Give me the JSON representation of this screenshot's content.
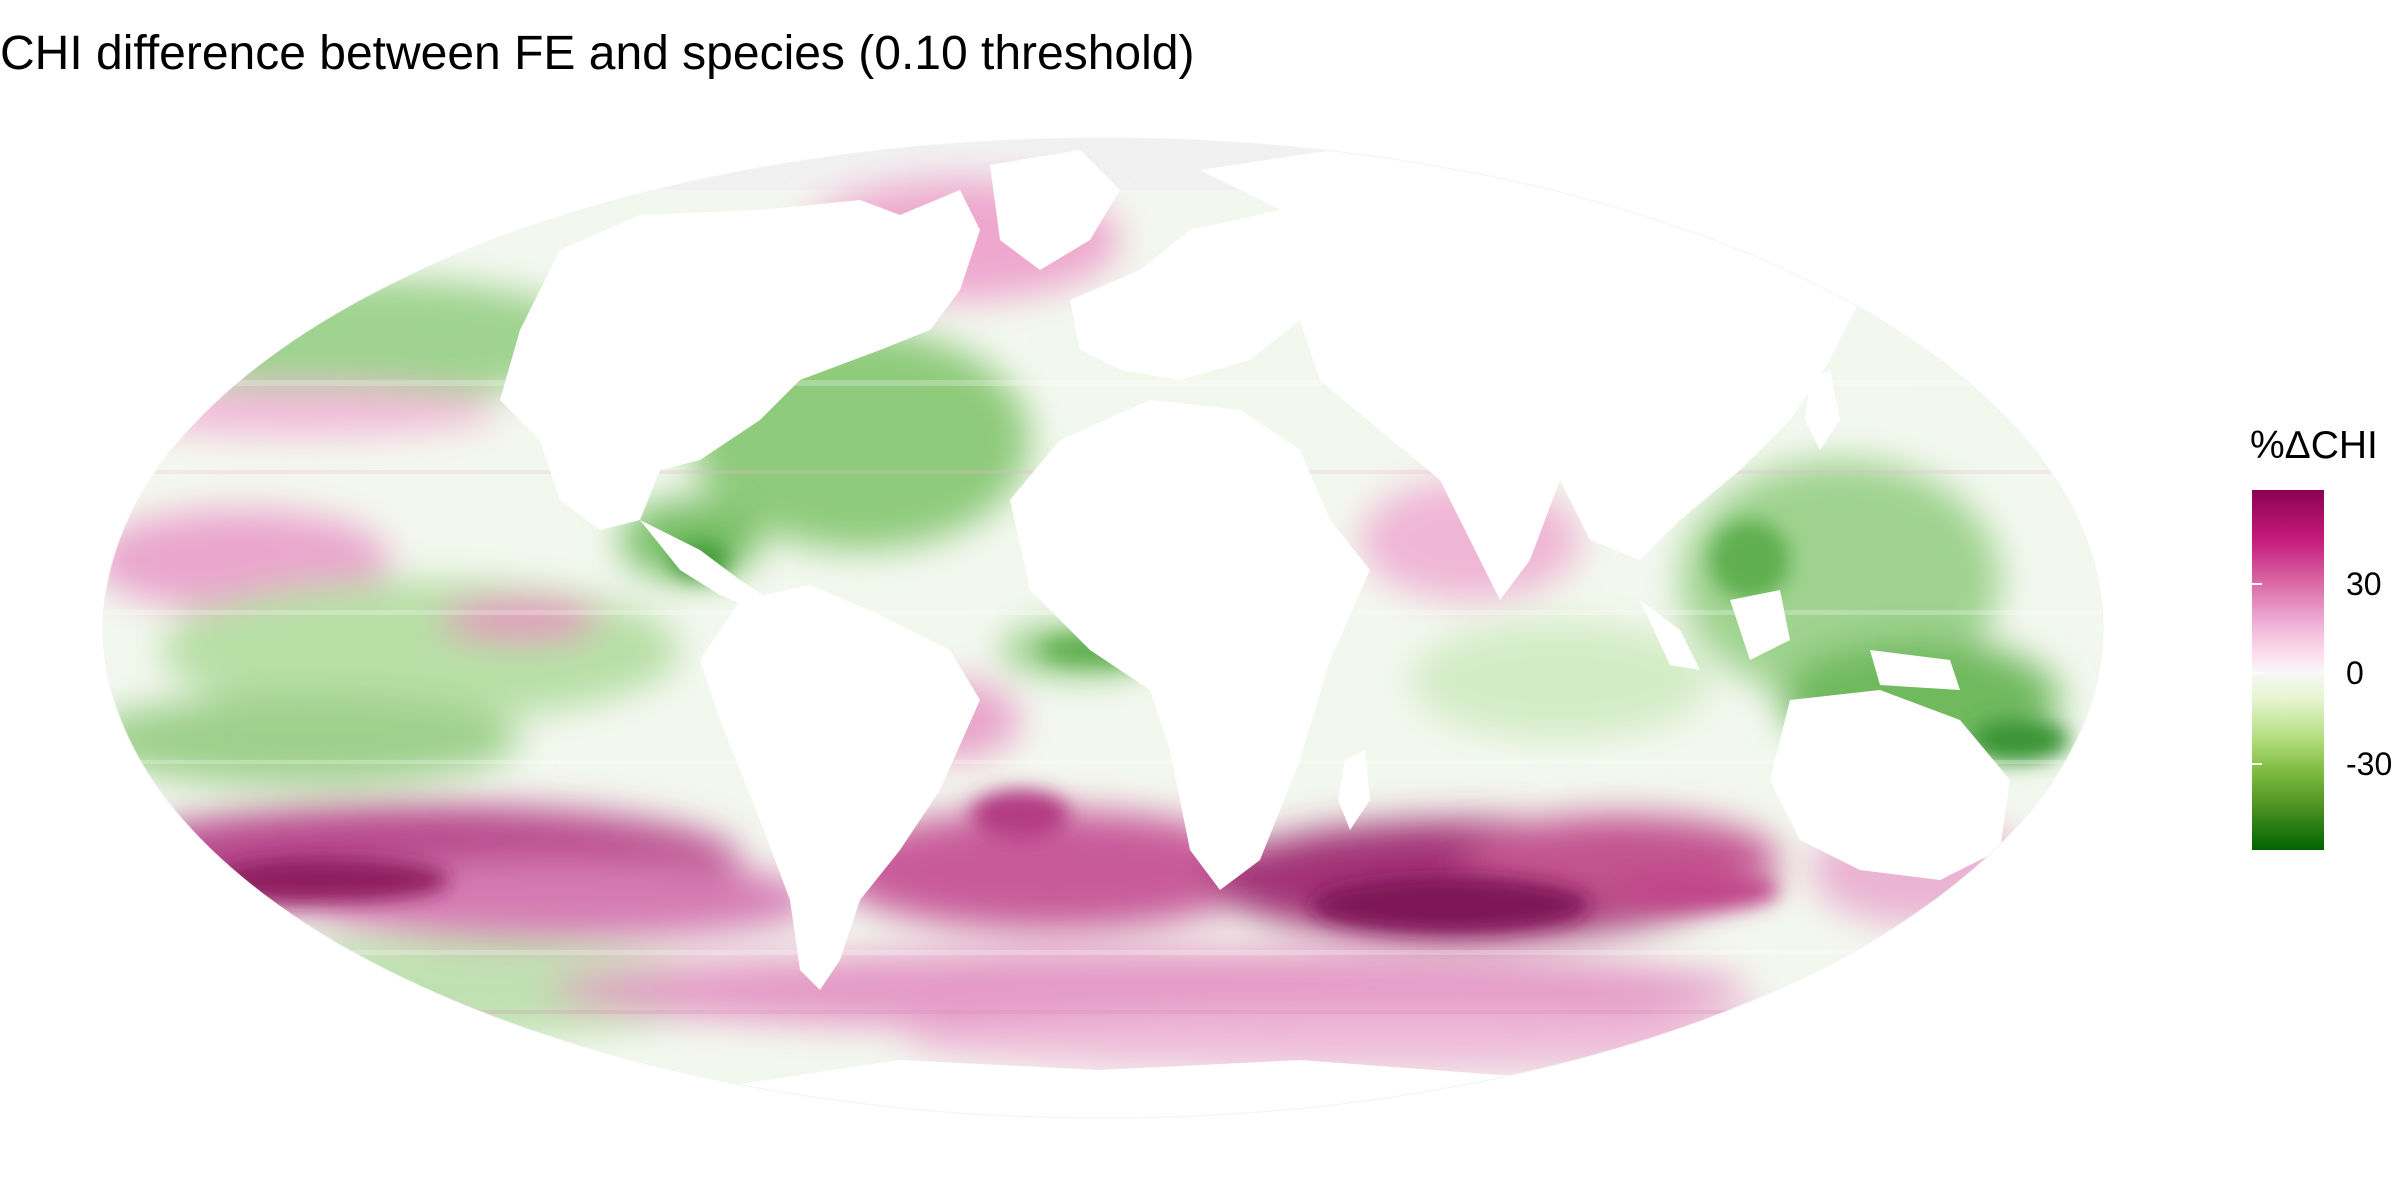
{
  "title": "CHI difference between FE and species (0.10 threshold)",
  "legend": {
    "title": "%ΔCHI",
    "ticks": [
      {
        "label": "30",
        "value": 30
      },
      {
        "label": "0",
        "value": 0
      },
      {
        "label": "-30",
        "value": -30
      }
    ],
    "range": [
      -45,
      45
    ],
    "colors": {
      "high": "#8e0152",
      "mid_high": "#de77ae",
      "mid": "#f7f7f7",
      "mid_low": "#7fbc41",
      "low": "#006400"
    }
  },
  "map": {
    "projection": "Mollweide",
    "colors": {
      "ocean_neutral": "#f3f8ef",
      "land": "#ffffff",
      "pink_light": "#f6c8e0",
      "pink": "#e596c4",
      "magenta": "#b5377f",
      "magenta_dark": "#8e1a5f",
      "green_light": "#cfe9c2",
      "green": "#8cc97a",
      "green_dark": "#2e8b2e",
      "nodata": "#f0f0f0"
    }
  }
}
